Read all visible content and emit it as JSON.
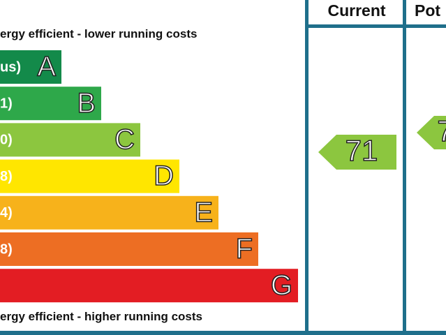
{
  "top_note": "ergy efficient - lower running costs",
  "bottom_note": "ergy efficient - higher running costs",
  "bands": [
    {
      "range": "us)",
      "letter": "A"
    },
    {
      "range": "1)",
      "letter": "B"
    },
    {
      "range": "0)",
      "letter": "C"
    },
    {
      "range": "8)",
      "letter": "D"
    },
    {
      "range": "4)",
      "letter": "E"
    },
    {
      "range": "8)",
      "letter": "F"
    },
    {
      "range": "",
      "letter": "G"
    }
  ],
  "columns": {
    "current": {
      "header": "Current",
      "rating": "71"
    },
    "potential": {
      "header": "Pot",
      "rating": "7"
    }
  }
}
